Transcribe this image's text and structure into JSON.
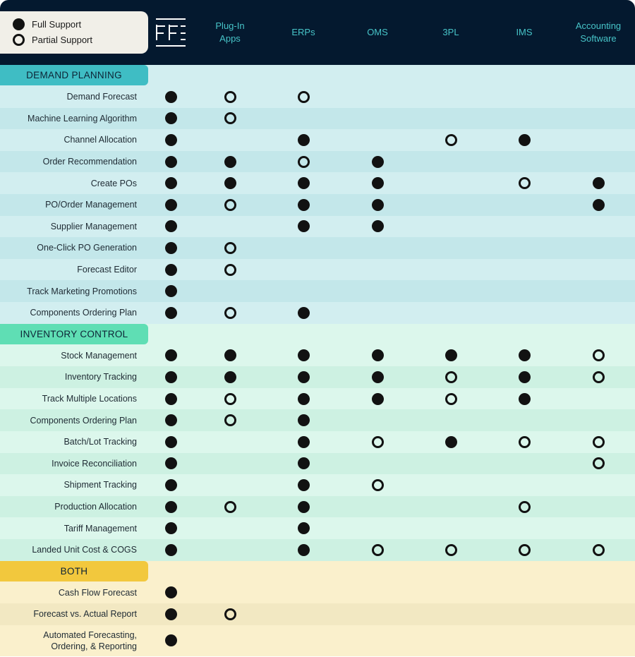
{
  "legend": {
    "full": "Full Support",
    "partial": "Partial Support"
  },
  "logo_icon": "ff-logo-icon",
  "columns": [
    "",
    "Plug-In\nApps",
    "ERPs",
    "OMS",
    "3PL",
    "IMS",
    "Accounting\nSoftware"
  ],
  "colors": {
    "header": "#04192f",
    "column_text": "#47c4c8",
    "demand_label": "#3fbdc4",
    "demand_light": "#d2eef0",
    "demand_dark": "#c3e7ea",
    "inventory_label": "#5fdeb4",
    "inventory_light": "#dcf7ec",
    "inventory_dark": "#cdf1e2",
    "both_label": "#f2c83d",
    "both_light": "#faf0cc",
    "both_dark": "#f2e8c2"
  },
  "sections": [
    {
      "title": "DEMAND PLANNING",
      "rows": [
        {
          "label": "Demand Forecast",
          "cells": [
            "F",
            "P",
            "P",
            "",
            "",
            "",
            ""
          ]
        },
        {
          "label": "Machine Learning Algorithm",
          "cells": [
            "F",
            "P",
            "",
            "",
            "",
            "",
            ""
          ]
        },
        {
          "label": "Channel Allocation",
          "cells": [
            "F",
            "",
            "F",
            "",
            "P",
            "F",
            ""
          ]
        },
        {
          "label": "Order Recommendation",
          "cells": [
            "F",
            "F",
            "P",
            "F",
            "",
            "",
            ""
          ]
        },
        {
          "label": "Create POs",
          "cells": [
            "F",
            "F",
            "F",
            "F",
            "",
            "P",
            "F"
          ]
        },
        {
          "label": "PO/Order Management",
          "cells": [
            "F",
            "P",
            "F",
            "F",
            "",
            "",
            "F"
          ]
        },
        {
          "label": "Supplier Management",
          "cells": [
            "F",
            "",
            "F",
            "F",
            "",
            "",
            ""
          ]
        },
        {
          "label": "One-Click PO Generation",
          "cells": [
            "F",
            "P",
            "",
            "",
            "",
            "",
            ""
          ]
        },
        {
          "label": "Forecast Editor",
          "cells": [
            "F",
            "P",
            "",
            "",
            "",
            "",
            ""
          ]
        },
        {
          "label": "Track Marketing Promotions",
          "cells": [
            "F",
            "",
            "",
            "",
            "",
            "",
            ""
          ]
        },
        {
          "label": "Components Ordering Plan",
          "cells": [
            "F",
            "P",
            "F",
            "",
            "",
            "",
            ""
          ]
        }
      ]
    },
    {
      "title": "INVENTORY CONTROL",
      "rows": [
        {
          "label": "Stock Management",
          "cells": [
            "F",
            "F",
            "F",
            "F",
            "F",
            "F",
            "P"
          ]
        },
        {
          "label": "Inventory Tracking",
          "cells": [
            "F",
            "F",
            "F",
            "F",
            "P",
            "F",
            "P"
          ]
        },
        {
          "label": "Track Multiple Locations",
          "cells": [
            "F",
            "P",
            "F",
            "F",
            "P",
            "F",
            ""
          ]
        },
        {
          "label": "Components Ordering Plan",
          "cells": [
            "F",
            "P",
            "F",
            "",
            "",
            "",
            ""
          ]
        },
        {
          "label": "Batch/Lot Tracking",
          "cells": [
            "F",
            "",
            "F",
            "P",
            "F",
            "P",
            "P"
          ]
        },
        {
          "label": "Invoice Reconciliation",
          "cells": [
            "F",
            "",
            "F",
            "",
            "",
            "",
            "P"
          ]
        },
        {
          "label": "Shipment Tracking",
          "cells": [
            "F",
            "",
            "F",
            "P",
            "",
            "",
            ""
          ]
        },
        {
          "label": "Production Allocation",
          "cells": [
            "F",
            "P",
            "F",
            "",
            "",
            "P",
            ""
          ]
        },
        {
          "label": "Tariff Management",
          "cells": [
            "F",
            "",
            "F",
            "",
            "",
            "",
            ""
          ]
        },
        {
          "label": "Landed Unit Cost & COGS",
          "cells": [
            "F",
            "",
            "F",
            "P",
            "P",
            "P",
            "P"
          ]
        }
      ]
    },
    {
      "title": "BOTH",
      "rows": [
        {
          "label": "Cash Flow Forecast",
          "cells": [
            "F",
            "",
            "",
            "",
            "",
            "",
            ""
          ]
        },
        {
          "label": "Forecast vs. Actual Report",
          "cells": [
            "F",
            "P",
            "",
            "",
            "",
            "",
            ""
          ]
        },
        {
          "label": "Automated Forecasting,\nOrdering, & Reporting",
          "cells": [
            "F",
            "",
            "",
            "",
            "",
            "",
            ""
          ]
        }
      ]
    }
  ]
}
